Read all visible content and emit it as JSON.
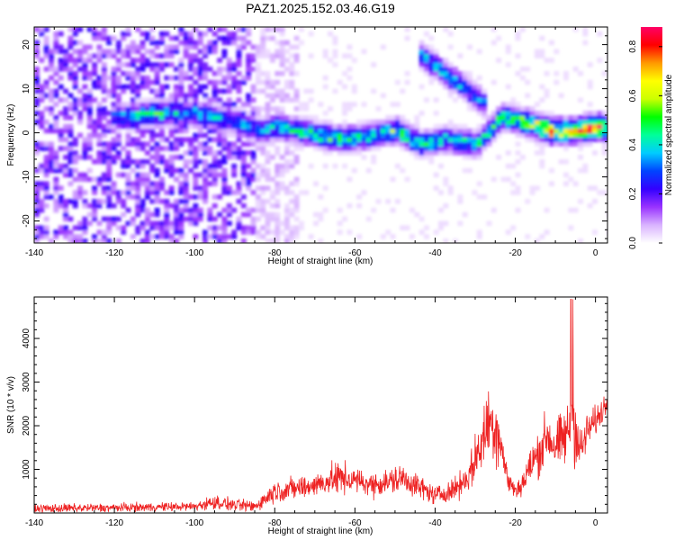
{
  "title": "PAZ1.2025.152.03.46.G19",
  "chart_data": [
    {
      "type": "heatmap",
      "xlabel": "Height of straight line (km)",
      "ylabel": "Frequency (Hz)",
      "xlim": [
        -140,
        3
      ],
      "ylim": [
        -25,
        24
      ],
      "xticks": [
        -140,
        -120,
        -100,
        -80,
        -60,
        -40,
        -20,
        0
      ],
      "yticks": [
        -20,
        -10,
        0,
        10,
        20
      ],
      "colorbar": {
        "label": "Normalized spectral amplitude",
        "range": [
          0,
          0.88
        ],
        "ticks": [
          0.0,
          0.2,
          0.4,
          0.6,
          0.8
        ],
        "colors": [
          "#ffffff",
          "#d9b3ff",
          "#9933ff",
          "#3300ff",
          "#0044ff",
          "#00ccff",
          "#00ff99",
          "#00ff00",
          "#ccff00",
          "#ffff00",
          "#ff9900",
          "#ff0000",
          "#ff0066"
        ]
      },
      "ridges": [
        {
          "points": [
            [
              -122,
              3
            ],
            [
              -110,
              4
            ],
            [
              -100,
              4
            ],
            [
              -90,
              2
            ],
            [
              -84,
              0
            ],
            [
              -80,
              1
            ],
            [
              -72,
              -0.5
            ],
            [
              -64,
              -2
            ],
            [
              -56,
              -1
            ],
            [
              -50,
              0
            ],
            [
              -44,
              -3
            ],
            [
              -38,
              -2
            ],
            [
              -30,
              -3
            ],
            [
              -24,
              3
            ],
            [
              -18,
              2
            ],
            [
              -12,
              0
            ],
            [
              -6,
              0
            ],
            [
              0,
              1
            ],
            [
              3,
              0
            ]
          ],
          "amplitude": [
            0.3,
            0.45,
            0.4,
            0.35,
            0.3,
            0.4,
            0.45,
            0.5,
            0.42,
            0.5,
            0.45,
            0.4,
            0.42,
            0.5,
            0.58,
            0.75,
            0.68,
            0.8,
            0.6
          ]
        },
        {
          "points": [
            [
              -44,
              17
            ],
            [
              -38,
              13
            ],
            [
              -32,
              9
            ],
            [
              -28,
              6
            ]
          ],
          "amplitude": [
            0.35,
            0.4,
            0.35,
            0.3
          ]
        }
      ]
    },
    {
      "type": "line",
      "xlabel": "Height of straight line (km)",
      "ylabel": "SNR (10 * v/v)",
      "xlim": [
        -140,
        3
      ],
      "ylim": [
        0,
        4950
      ],
      "xticks": [
        -140,
        -120,
        -100,
        -80,
        -60,
        -40,
        -20,
        0
      ],
      "yticks": [
        1000,
        2000,
        3000,
        4000
      ],
      "color": "#ee2222",
      "envelope": {
        "x": [
          -140,
          -120,
          -100,
          -95,
          -90,
          -85,
          -82,
          -80,
          -76,
          -72,
          -68,
          -64,
          -60,
          -56,
          -52,
          -48,
          -44,
          -40,
          -36,
          -32,
          -30,
          -28,
          -27,
          -26,
          -25,
          -24,
          -23,
          -22,
          -20,
          -18,
          -16,
          -14,
          -12,
          -10,
          -8,
          -7,
          -6,
          -5,
          -4,
          -3,
          -2,
          0,
          2,
          3
        ],
        "mean": [
          100,
          120,
          150,
          250,
          180,
          150,
          350,
          500,
          550,
          600,
          700,
          800,
          750,
          650,
          700,
          800,
          600,
          400,
          500,
          800,
          1200,
          1700,
          2000,
          2100,
          2000,
          1800,
          1300,
          800,
          500,
          700,
          1100,
          1400,
          1800,
          1500,
          1700,
          1800,
          2200,
          2000,
          1400,
          1600,
          1900,
          2100,
          2400,
          2600
        ],
        "spread": [
          150,
          150,
          150,
          250,
          200,
          200,
          300,
          350,
          400,
          400,
          400,
          600,
          400,
          400,
          450,
          500,
          400,
          300,
          350,
          500,
          800,
          1000,
          1200,
          1400,
          1300,
          1000,
          700,
          400,
          300,
          500,
          700,
          800,
          900,
          800,
          1000,
          1100,
          1600,
          1300,
          800,
          700,
          600,
          500,
          450,
          400
        ]
      }
    }
  ]
}
